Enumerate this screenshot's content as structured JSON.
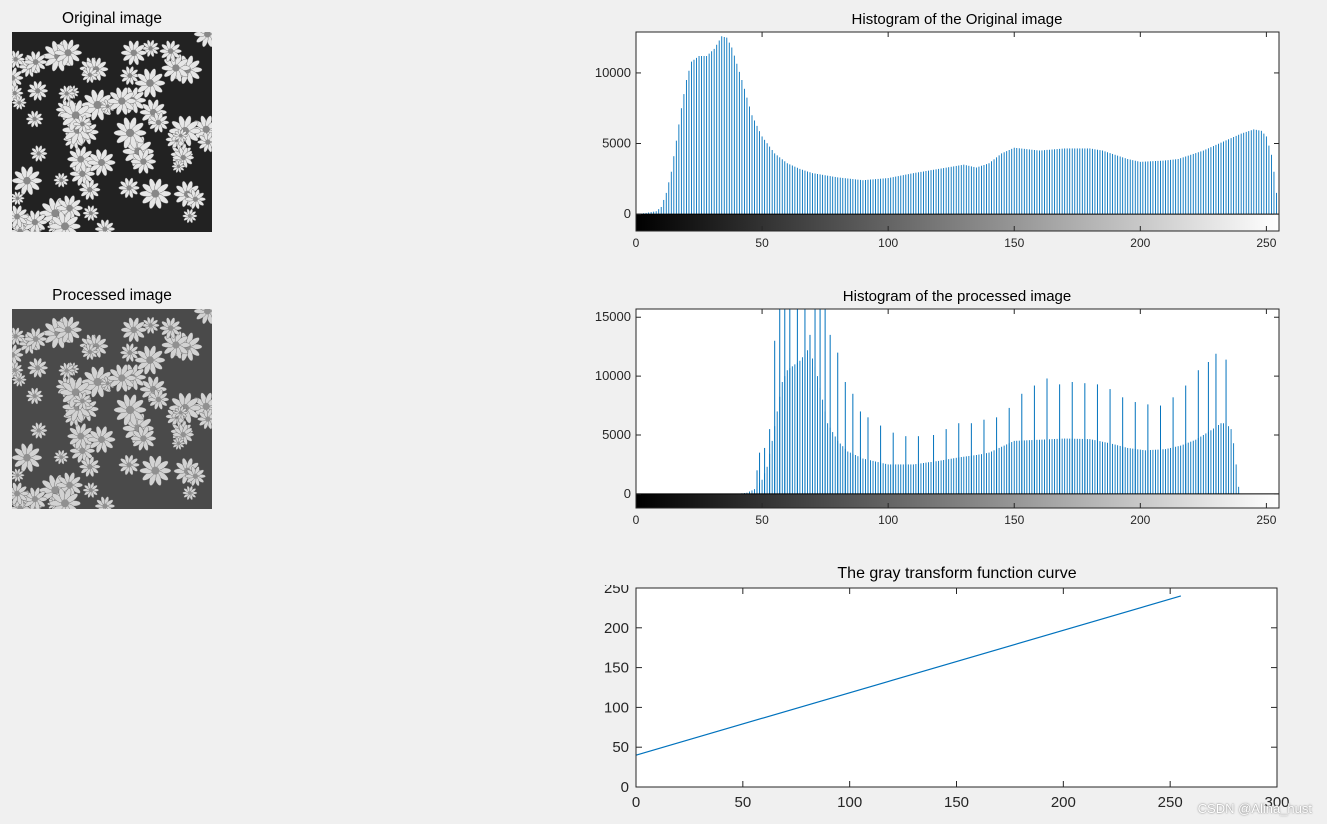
{
  "left_panels": {
    "original_title": "Original image",
    "processed_title": "Processed image"
  },
  "watermark": "CSDN @Alina_hust",
  "chart_data": [
    {
      "id": "hist_original",
      "type": "bar",
      "title": "Histogram of the Original image",
      "xlabel": "",
      "ylabel": "",
      "xlim": [
        0,
        255
      ],
      "ylim": [
        -1200,
        12900
      ],
      "xticks": [
        "0",
        "50",
        "100",
        "150",
        "200",
        "250"
      ],
      "yticks": [
        "0",
        "5000",
        "10000"
      ],
      "colorbar": "gray",
      "series": [
        {
          "name": "counts",
          "color": "#0072bd",
          "anchors": [
            [
              0,
              0
            ],
            [
              4,
              80
            ],
            [
              8,
              200
            ],
            [
              10,
              500
            ],
            [
              12,
              1500
            ],
            [
              14,
              3000
            ],
            [
              16,
              5200
            ],
            [
              18,
              7500
            ],
            [
              20,
              9500
            ],
            [
              22,
              10800
            ],
            [
              25,
              11200
            ],
            [
              28,
              11200
            ],
            [
              31,
              11700
            ],
            [
              34,
              12600
            ],
            [
              36,
              12500
            ],
            [
              38,
              11800
            ],
            [
              42,
              9500
            ],
            [
              46,
              7000
            ],
            [
              50,
              5500
            ],
            [
              55,
              4300
            ],
            [
              60,
              3600
            ],
            [
              65,
              3200
            ],
            [
              70,
              2900
            ],
            [
              80,
              2600
            ],
            [
              90,
              2400
            ],
            [
              100,
              2550
            ],
            [
              110,
              2900
            ],
            [
              120,
              3200
            ],
            [
              130,
              3500
            ],
            [
              135,
              3300
            ],
            [
              140,
              3600
            ],
            [
              145,
              4300
            ],
            [
              150,
              4700
            ],
            [
              155,
              4600
            ],
            [
              160,
              4500
            ],
            [
              170,
              4650
            ],
            [
              180,
              4650
            ],
            [
              185,
              4500
            ],
            [
              190,
              4200
            ],
            [
              195,
              3900
            ],
            [
              200,
              3700
            ],
            [
              210,
              3800
            ],
            [
              215,
              3900
            ],
            [
              220,
              4200
            ],
            [
              225,
              4500
            ],
            [
              230,
              4900
            ],
            [
              235,
              5300
            ],
            [
              240,
              5700
            ],
            [
              245,
              6000
            ],
            [
              248,
              5900
            ],
            [
              250,
              5500
            ],
            [
              252,
              4200
            ],
            [
              253,
              3000
            ],
            [
              254,
              1500
            ],
            [
              255,
              400
            ]
          ]
        }
      ]
    },
    {
      "id": "hist_processed",
      "type": "bar",
      "title": "Histogram of the processed image",
      "xlabel": "",
      "ylabel": "",
      "xlim": [
        0,
        255
      ],
      "ylim": [
        -1200,
        15700
      ],
      "xticks": [
        "0",
        "50",
        "100",
        "150",
        "200",
        "250"
      ],
      "yticks": [
        "0",
        "5000",
        "10000",
        "15000"
      ],
      "colorbar": "gray",
      "series": [
        {
          "name": "counts",
          "color": "#0072bd",
          "low_anchors": [
            [
              40,
              0
            ],
            [
              44,
              100
            ],
            [
              47,
              400
            ],
            [
              50,
              1200
            ],
            [
              52,
              2300
            ],
            [
              54,
              4500
            ],
            [
              56,
              7000
            ],
            [
              58,
              9500
            ],
            [
              60,
              10500
            ],
            [
              63,
              11000
            ],
            [
              65,
              11300
            ],
            [
              68,
              12200
            ],
            [
              70,
              11500
            ],
            [
              72,
              10000
            ],
            [
              74,
              8000
            ],
            [
              76,
              6000
            ],
            [
              80,
              4500
            ],
            [
              84,
              3600
            ],
            [
              90,
              3000
            ],
            [
              100,
              2500
            ],
            [
              110,
              2500
            ],
            [
              120,
              2800
            ],
            [
              128,
              3100
            ],
            [
              135,
              3300
            ],
            [
              140,
              3500
            ],
            [
              145,
              4000
            ],
            [
              150,
              4500
            ],
            [
              160,
              4600
            ],
            [
              170,
              4700
            ],
            [
              180,
              4650
            ],
            [
              188,
              4300
            ],
            [
              195,
              3900
            ],
            [
              202,
              3700
            ],
            [
              210,
              3800
            ],
            [
              216,
              4100
            ],
            [
              222,
              4600
            ],
            [
              228,
              5400
            ],
            [
              232,
              6000
            ],
            [
              234,
              6000
            ],
            [
              236,
              5500
            ],
            [
              237,
              4300
            ],
            [
              238,
              2500
            ],
            [
              239,
              600
            ],
            [
              240,
              0
            ]
          ],
          "spikes": [
            [
              48,
              2000
            ],
            [
              49,
              3500
            ],
            [
              51,
              3900
            ],
            [
              53,
              5500
            ],
            [
              55,
              13000
            ],
            [
              57,
              15700
            ],
            [
              59,
              15700
            ],
            [
              61,
              15700
            ],
            [
              64,
              15700
            ],
            [
              67,
              15700
            ],
            [
              69,
              13500
            ],
            [
              71,
              15700
            ],
            [
              73,
              15700
            ],
            [
              75,
              15700
            ],
            [
              77,
              13500
            ],
            [
              80,
              12000
            ],
            [
              83,
              9500
            ],
            [
              86,
              8500
            ],
            [
              89,
              7000
            ],
            [
              92,
              6500
            ],
            [
              97,
              5800
            ],
            [
              102,
              5200
            ],
            [
              107,
              4900
            ],
            [
              112,
              4900
            ],
            [
              118,
              5000
            ],
            [
              123,
              5500
            ],
            [
              128,
              6000
            ],
            [
              133,
              6000
            ],
            [
              138,
              6300
            ],
            [
              143,
              6500
            ],
            [
              148,
              7300
            ],
            [
              153,
              8500
            ],
            [
              158,
              9200
            ],
            [
              163,
              9800
            ],
            [
              168,
              9300
            ],
            [
              173,
              9500
            ],
            [
              178,
              9400
            ],
            [
              183,
              9300
            ],
            [
              188,
              8900
            ],
            [
              193,
              8200
            ],
            [
              198,
              7800
            ],
            [
              203,
              7600
            ],
            [
              208,
              7500
            ],
            [
              213,
              8200
            ],
            [
              218,
              9200
            ],
            [
              223,
              10500
            ],
            [
              227,
              11200
            ],
            [
              230,
              11900
            ],
            [
              234,
              11400
            ]
          ]
        }
      ]
    },
    {
      "id": "transform_curve",
      "type": "line",
      "title": "The gray transform function curve",
      "xlabel": "",
      "ylabel": "",
      "xlim": [
        0,
        300
      ],
      "ylim": [
        0,
        250
      ],
      "xticks": [
        "0",
        "50",
        "100",
        "150",
        "200",
        "250",
        "300"
      ],
      "yticks": [
        "0",
        "50",
        "100",
        "150",
        "200",
        "250"
      ],
      "series": [
        {
          "name": "transform",
          "color": "#0072bd",
          "x": [
            0,
            255
          ],
          "y": [
            40,
            240
          ]
        }
      ]
    }
  ]
}
